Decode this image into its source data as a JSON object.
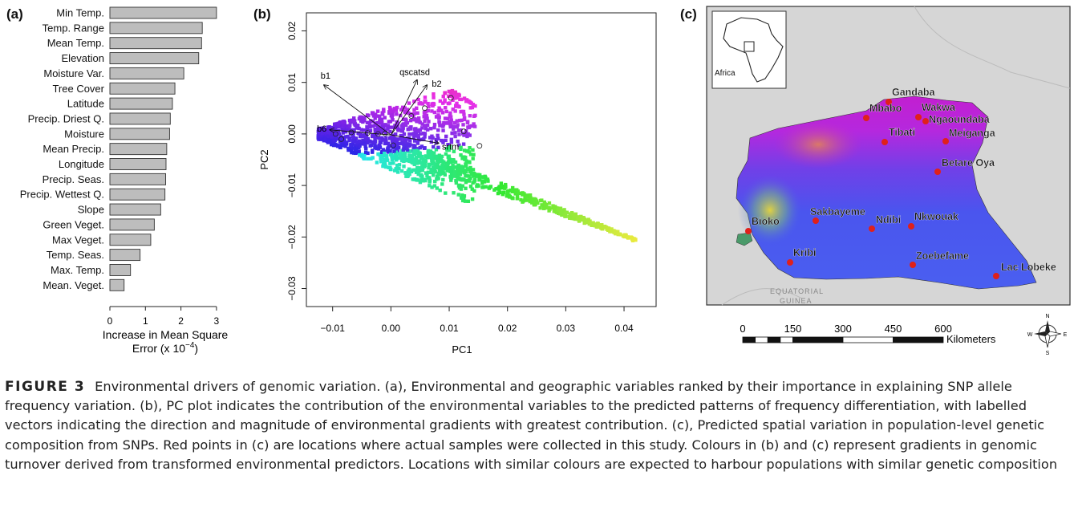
{
  "panels": {
    "a": "(a)",
    "b": "(b)",
    "c": "(c)"
  },
  "chart_data": [
    {
      "type": "bar",
      "orientation": "horizontal",
      "categories": [
        "Min Temp.",
        "Temp. Range",
        "Mean Temp.",
        "Elevation",
        "Moisture Var.",
        "Tree Cover",
        "Latitude",
        "Precip. Driest Q.",
        "Moisture",
        "Mean Precip.",
        "Longitude",
        "Precip. Seas.",
        "Precip. Wettest Q.",
        "Slope",
        "Green Veget.",
        "Max Veget.",
        "Temp. Seas.",
        "Max. Temp.",
        "Mean. Veget."
      ],
      "values": [
        3.0,
        2.6,
        2.58,
        2.5,
        2.08,
        1.83,
        1.76,
        1.7,
        1.68,
        1.6,
        1.58,
        1.57,
        1.55,
        1.43,
        1.25,
        1.15,
        0.85,
        0.58,
        0.4
      ],
      "xticks": [
        "0",
        "1",
        "2",
        "3"
      ],
      "xlim": [
        0,
        3
      ],
      "xlabel_line1": "Increase in Mean Square",
      "xlabel_line2": "Error (x 10",
      "xlabel_sup": "−4",
      "xlabel_end": ")"
    },
    {
      "type": "scatter",
      "xlabel": "PC1",
      "ylabel": "PC2",
      "xticks": [
        "−0.01",
        "0.00",
        "0.01",
        "0.02",
        "0.03",
        "0.04"
      ],
      "xtick_values": [
        -0.01,
        0,
        0.01,
        0.02,
        0.03,
        0.04
      ],
      "yticks": [
        "0.02",
        "0.01",
        "0.00",
        "−0.01",
        "−0.02",
        "−0.03"
      ],
      "ytick_values": [
        0.02,
        0.01,
        0,
        -0.01,
        -0.02,
        -0.03
      ],
      "xlim": [
        -0.0145,
        0.0455
      ],
      "ylim": [
        -0.0335,
        0.0235
      ],
      "vectors": [
        {
          "label": "b1",
          "x": -0.0115,
          "y": 0.0095
        },
        {
          "label": "qscatsd",
          "x": 0.0045,
          "y": 0.0105
        },
        {
          "label": "b2",
          "x": 0.0062,
          "y": 0.0095
        },
        {
          "label": "b6",
          "x": -0.0105,
          "y": 0.0008
        },
        {
          "label": "srtm",
          "x": 0.0082,
          "y": -0.0018
        }
      ],
      "points_note": "dense cloud coloured by genomic turnover gradient"
    }
  ],
  "map": {
    "inset_label": "Africa",
    "neighbor_label_1": "EQUATORIAL",
    "neighbor_label_2": "GUINEA",
    "sites": [
      {
        "name": "Gandaba"
      },
      {
        "name": "Mbabo"
      },
      {
        "name": "Wakwa"
      },
      {
        "name": "Ngaoundaba"
      },
      {
        "name": "Tibati"
      },
      {
        "name": "Meiganga"
      },
      {
        "name": "Betare Oya"
      },
      {
        "name": "Bioko"
      },
      {
        "name": "Sakbayeme"
      },
      {
        "name": "Ndibi"
      },
      {
        "name": "Nkwouak"
      },
      {
        "name": "Kribi"
      },
      {
        "name": "Zoebefame"
      },
      {
        "name": "Lac Lobeke"
      }
    ],
    "scale_ticks": [
      "0",
      "150",
      "300",
      "450",
      "600"
    ],
    "scale_unit": "Kilometers",
    "compass": {
      "n": "N",
      "s": "S",
      "e": "E",
      "w": "W"
    },
    "site_color": "#e0201b"
  },
  "caption": {
    "figure_label": "FIGURE 3",
    "text": "Environmental drivers of genomic variation. (a), Environmental and geographic variables ranked by their importance in explaining SNP allele frequency variation. (b), PC plot indicates the contribution of the environmental variables to the predicted patterns of frequency differentiation, with labelled vectors indicating the direction and magnitude of environmental gradients with greatest contribution. (c), Predicted spatial variation in population-level genetic composition from SNPs. Red points in (c) are locations where actual samples were collected in this study. Colours in (b) and (c) represent gradients in genomic turnover derived from transformed environmental predictors. Locations with similar colours are expected to harbour populations with similar genetic composition"
  }
}
